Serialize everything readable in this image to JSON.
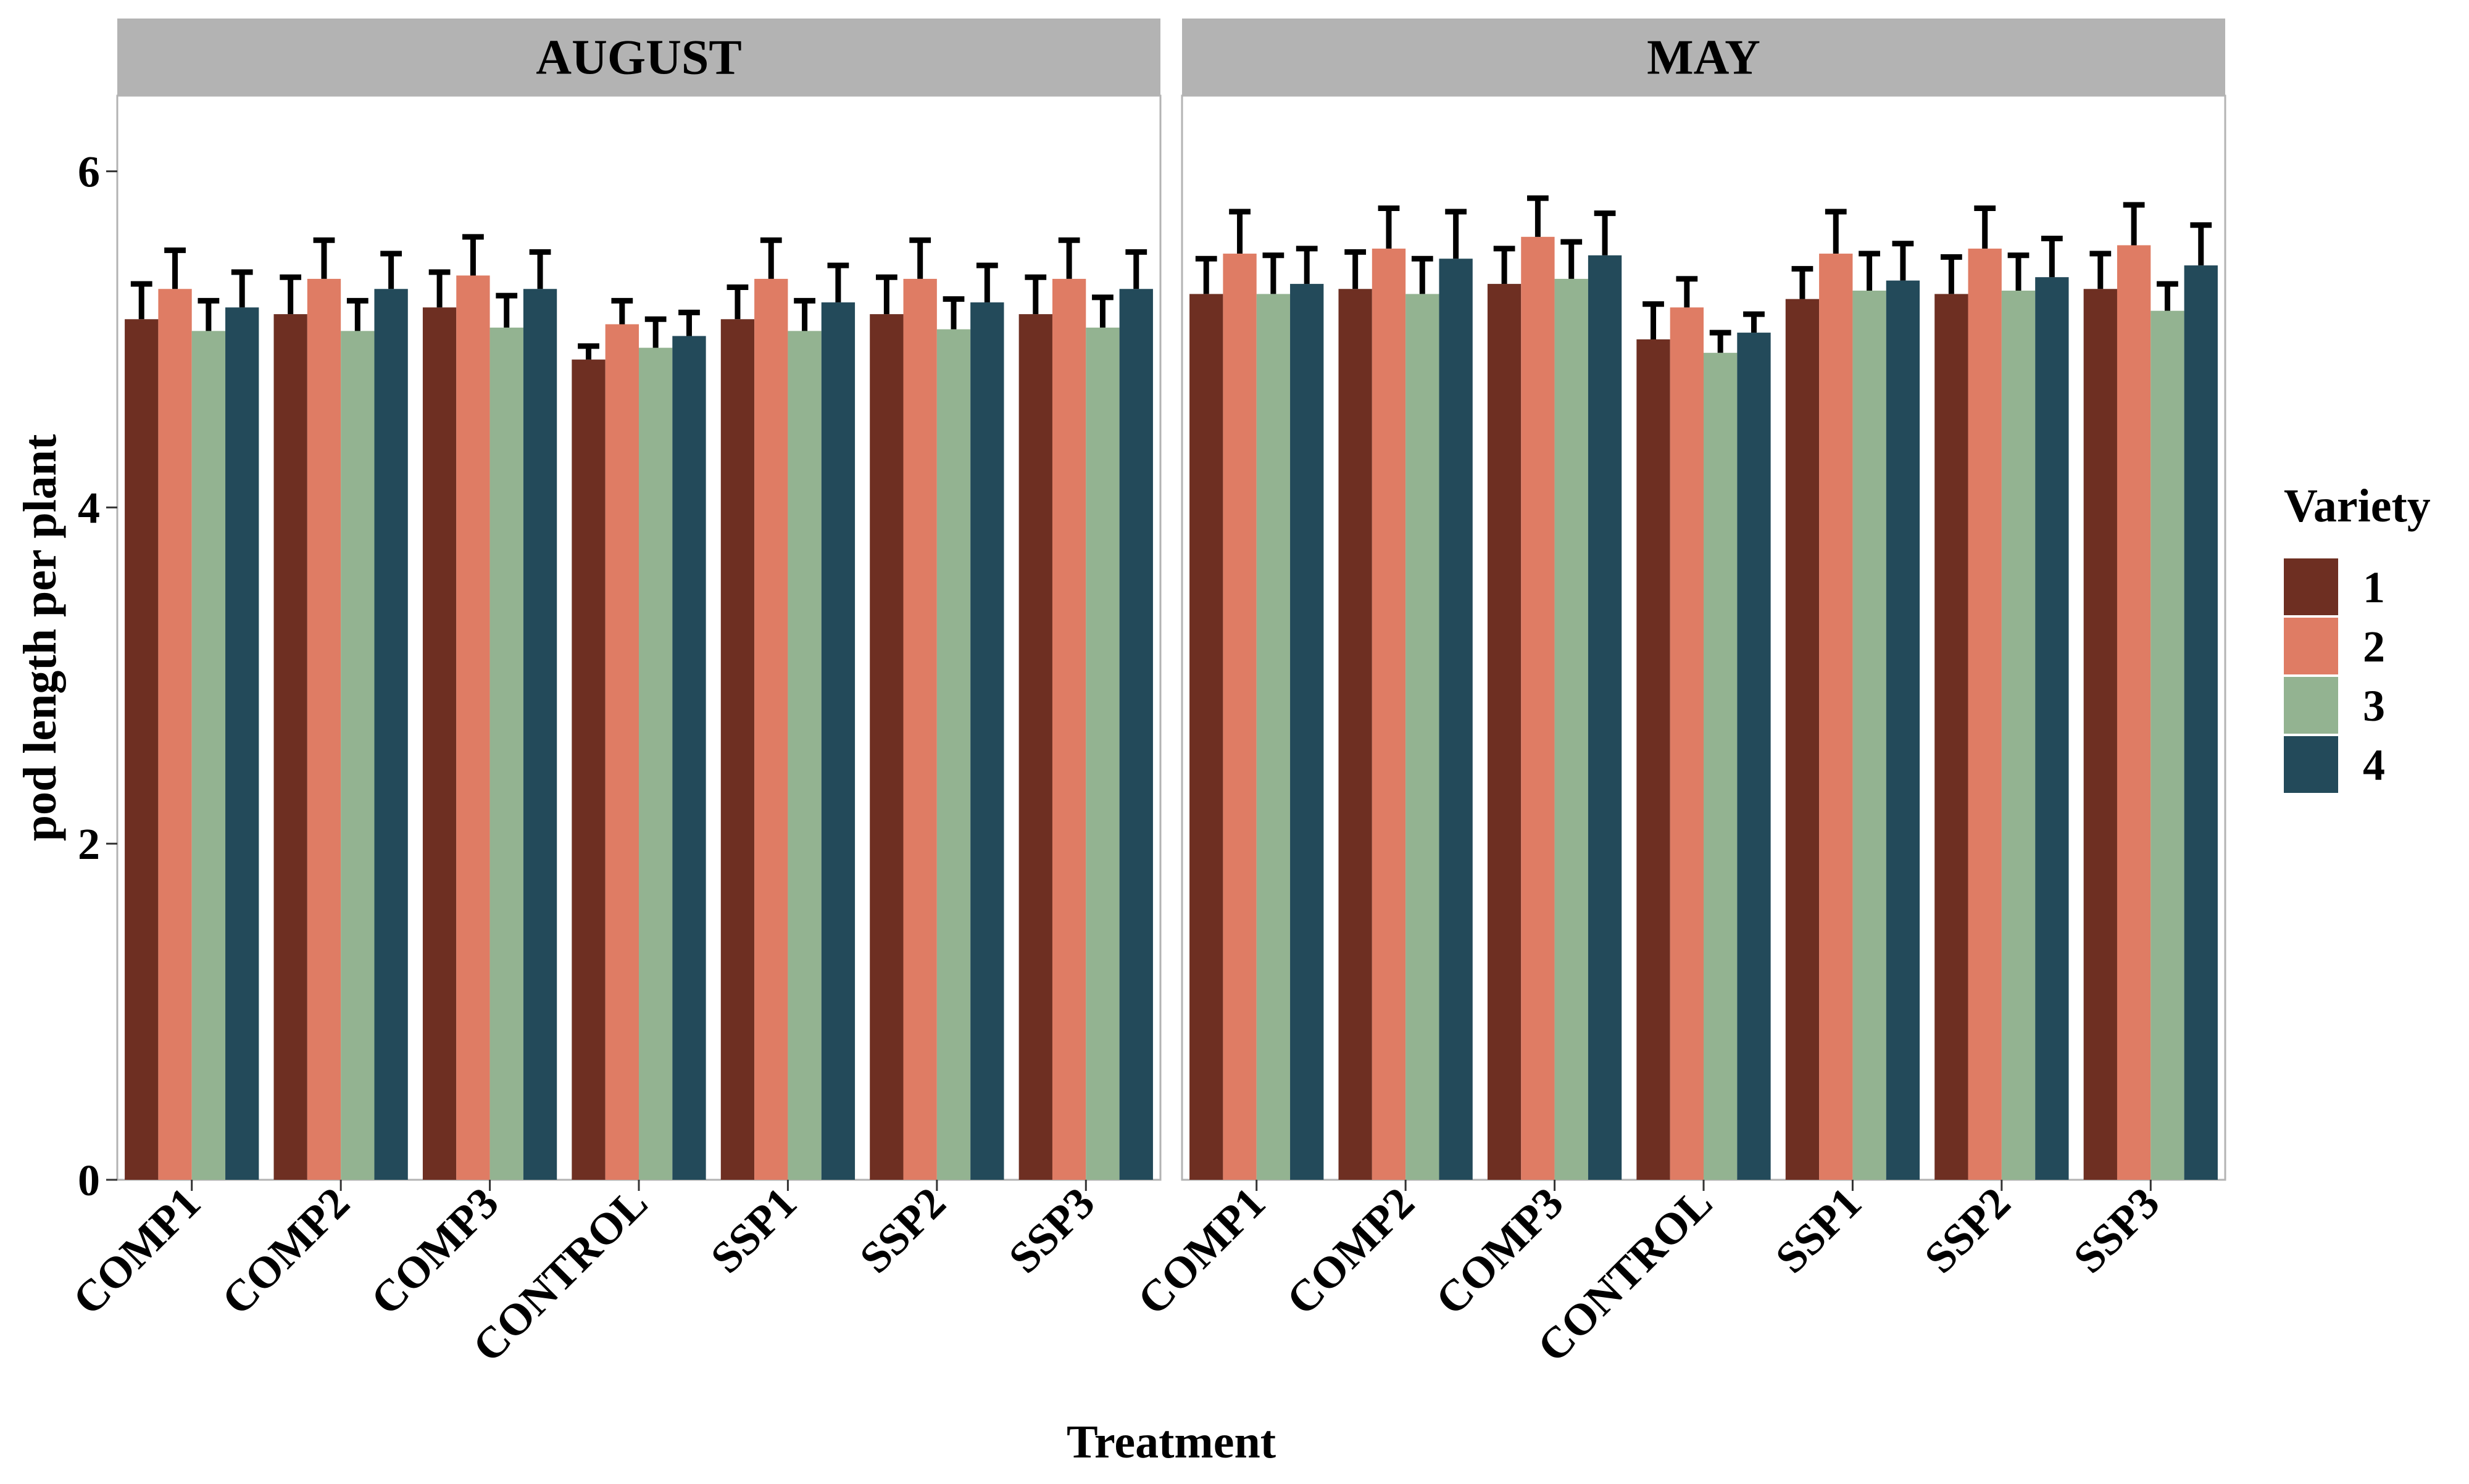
{
  "chart_data": {
    "type": "bar",
    "facets": [
      "AUGUST",
      "MAY"
    ],
    "categories": [
      "COMP1",
      "COMP2",
      "COMP3",
      "CONTROL",
      "SSP1",
      "SSP2",
      "SSP3"
    ],
    "xlabel": "Treatment",
    "ylabel": "pod length per plant",
    "ylim": [
      0,
      6.45
    ],
    "yticks": [
      "0",
      "2",
      "4",
      "6"
    ],
    "legend_title": "Variety",
    "legend_position": "right",
    "grid": false,
    "series": [
      {
        "name": "1",
        "color": "#6e2f22",
        "AUGUST": [
          5.12,
          5.15,
          5.19,
          4.88,
          5.12,
          5.15,
          5.15
        ],
        "MAY": [
          5.27,
          5.3,
          5.33,
          5.0,
          5.24,
          5.27,
          5.3
        ],
        "err_AUGUST": [
          0.21,
          0.22,
          0.21,
          0.08,
          0.19,
          0.22,
          0.22
        ],
        "err_MAY": [
          0.21,
          0.22,
          0.21,
          0.21,
          0.18,
          0.22,
          0.21
        ]
      },
      {
        "name": "2",
        "color": "#df7c64",
        "AUGUST": [
          5.3,
          5.36,
          5.38,
          5.09,
          5.36,
          5.36,
          5.36
        ],
        "MAY": [
          5.51,
          5.54,
          5.61,
          5.19,
          5.51,
          5.54,
          5.56
        ],
        "err_AUGUST": [
          0.23,
          0.23,
          0.23,
          0.14,
          0.23,
          0.23,
          0.23
        ],
        "err_MAY": [
          0.25,
          0.24,
          0.23,
          0.17,
          0.25,
          0.24,
          0.24
        ]
      },
      {
        "name": "3",
        "color": "#93b391",
        "AUGUST": [
          5.05,
          5.05,
          5.07,
          4.95,
          5.05,
          5.06,
          5.07
        ],
        "MAY": [
          5.27,
          5.27,
          5.36,
          4.92,
          5.29,
          5.29,
          5.17
        ],
        "err_AUGUST": [
          0.18,
          0.18,
          0.19,
          0.17,
          0.18,
          0.18,
          0.18
        ],
        "err_MAY": [
          0.23,
          0.21,
          0.22,
          0.12,
          0.22,
          0.21,
          0.16
        ]
      },
      {
        "name": "4",
        "color": "#234a5a",
        "AUGUST": [
          5.19,
          5.3,
          5.3,
          5.02,
          5.22,
          5.22,
          5.3
        ],
        "MAY": [
          5.33,
          5.48,
          5.5,
          5.04,
          5.35,
          5.37,
          5.44
        ],
        "err_AUGUST": [
          0.21,
          0.21,
          0.22,
          0.14,
          0.22,
          0.22,
          0.22
        ],
        "err_MAY": [
          0.21,
          0.28,
          0.25,
          0.11,
          0.22,
          0.23,
          0.24
        ]
      }
    ]
  }
}
